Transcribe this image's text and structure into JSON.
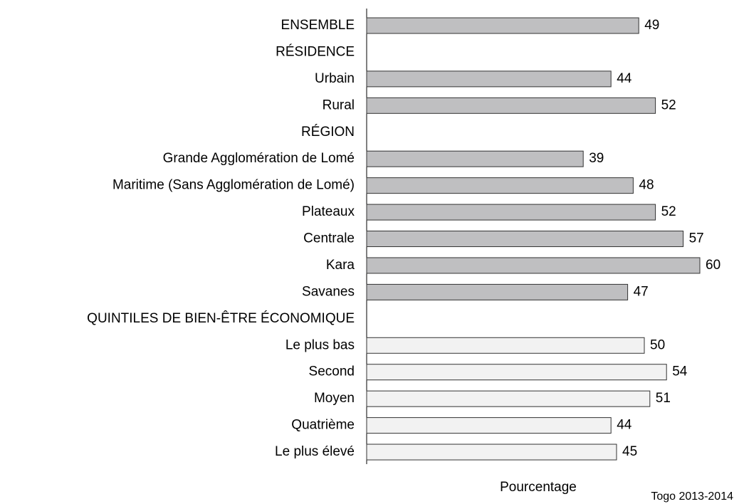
{
  "chart_data": {
    "type": "barh",
    "categories": [
      "ENSEMBLE",
      "RÉSIDENCE",
      "Urbain",
      "Rural",
      "RÉGION",
      "Grande Agglomération de Lomé",
      "Maritime (Sans Agglomération de Lomé)",
      "Plateaux",
      "Centrale",
      "Kara",
      "Savanes",
      "QUINTILES DE BIEN-ÊTRE ÉCONOMIQUE",
      "Le plus bas",
      "Second",
      "Moyen",
      "Quatrième",
      "Le plus élevé"
    ],
    "values": [
      49,
      null,
      44,
      52,
      null,
      39,
      48,
      52,
      57,
      60,
      47,
      null,
      50,
      54,
      51,
      44,
      45
    ],
    "colors": [
      "#bfbfc1",
      null,
      "#bfbfc1",
      "#bfbfc1",
      null,
      "#bfbfc1",
      "#bfbfc1",
      "#bfbfc1",
      "#bfbfc1",
      "#bfbfc1",
      "#bfbfc1",
      null,
      "#f2f2f2",
      "#f2f2f2",
      "#f2f2f2",
      "#f2f2f2",
      "#f2f2f2"
    ],
    "xlim": [
      0,
      60
    ],
    "xlabel": "Pourcentage",
    "note": "Togo 2013-2014"
  }
}
